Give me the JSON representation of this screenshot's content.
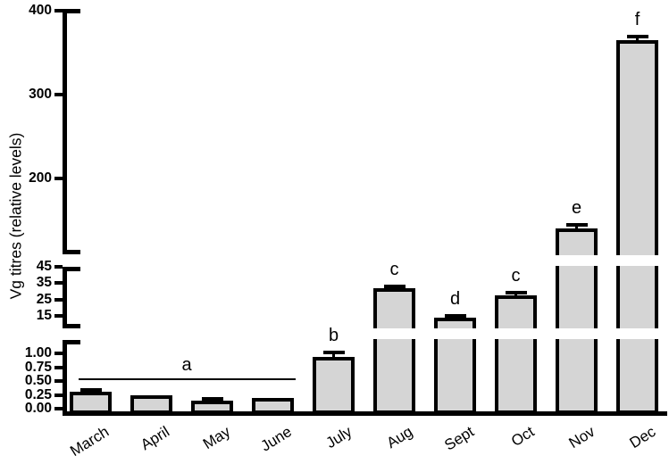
{
  "chart_data": {
    "type": "bar",
    "title": "",
    "ylabel": "Vg titres (relative levels)",
    "xlabel": "",
    "categories": [
      "March",
      "April",
      "May",
      "June",
      "July",
      "Aug",
      "Sept",
      "Oct",
      "Nov",
      "Dec"
    ],
    "values": [
      0.3,
      0.25,
      0.15,
      0.2,
      0.93,
      32,
      14,
      27.5,
      140,
      365
    ],
    "errors": [
      0.04,
      0,
      0.03,
      0,
      0.08,
      1.2,
      1.0,
      1.5,
      5,
      4
    ],
    "significance_letters": [
      "a",
      "a",
      "a",
      "a",
      "b",
      "c",
      "d",
      "c",
      "e",
      "f"
    ],
    "significance_line": {
      "label": "a",
      "from": "March",
      "to": "June"
    },
    "axis_segments": [
      {
        "range": [
          0,
          1.2
        ],
        "ticks": [
          {
            "label": "0.00",
            "value": 0
          },
          {
            "label": "0.25",
            "value": 0.25
          },
          {
            "label": "0.50",
            "value": 0.5
          },
          {
            "label": "0.75",
            "value": 0.75
          },
          {
            "label": "1.00",
            "value": 1.0
          }
        ]
      },
      {
        "range": [
          10,
          45
        ],
        "ticks": [
          {
            "label": "15",
            "value": 15
          },
          {
            "label": "25",
            "value": 25
          },
          {
            "label": "35",
            "value": 35
          },
          {
            "label": "45",
            "value": 45
          }
        ]
      },
      {
        "range": [
          110,
          400
        ],
        "ticks": [
          {
            "label": "200",
            "value": 200
          },
          {
            "label": "300",
            "value": 300
          },
          {
            "label": "400",
            "value": 400
          }
        ]
      }
    ],
    "grid": false,
    "legend": null,
    "bar_color": "#d5d5d5",
    "bar_border_color": "#000000",
    "axis_color": "#000000",
    "background_color": "#ffffff"
  }
}
